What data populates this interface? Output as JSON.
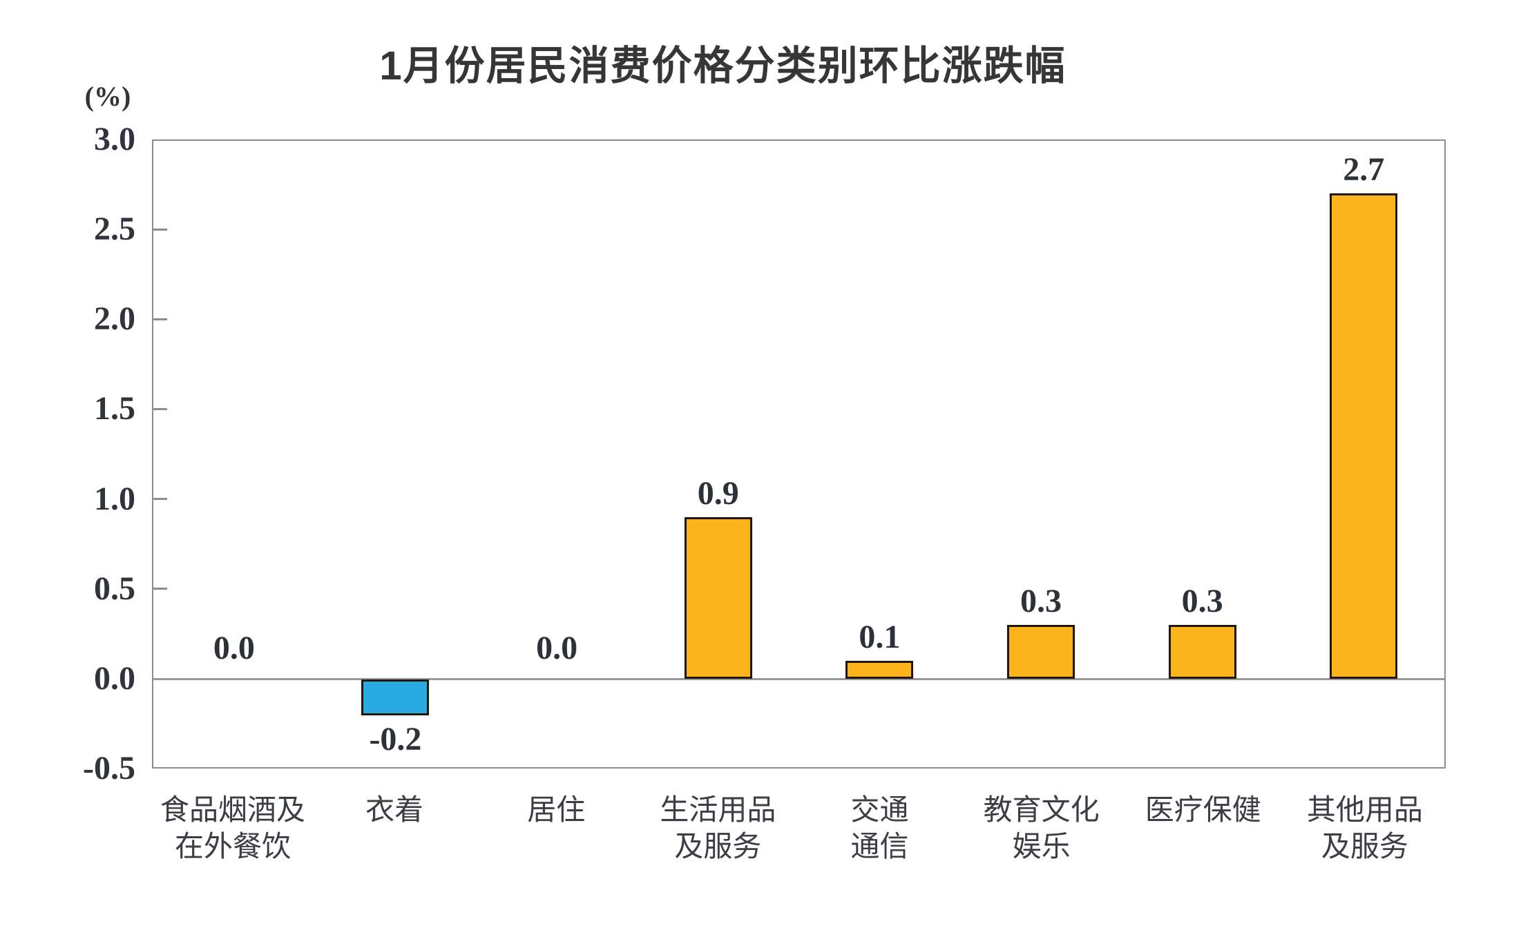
{
  "figure": {
    "title": "1月份居民消费价格分类别环比涨跌幅",
    "unit_label": "(%)"
  },
  "colors": {
    "positive_bar": "#FBB41B",
    "negative_bar": "#29ABE2",
    "bar_border": "#201708",
    "axis_border": "#8C8C8C",
    "zero_line": "#9A9A9A",
    "text": "#2C313A",
    "background": "#FFFFFF"
  },
  "chart_data": {
    "type": "bar",
    "title": "1月份居民消费价格分类别环比涨跌幅",
    "xlabel": "",
    "ylabel": "(%)",
    "ylim": [
      -0.5,
      3.0
    ],
    "yticks": [
      3.0,
      2.5,
      2.0,
      1.5,
      1.0,
      0.5,
      0.0,
      -0.5
    ],
    "ytick_labels": [
      "3.0",
      "2.5",
      "2.0",
      "1.5",
      "1.0",
      "0.5",
      "0.0",
      "-0.5"
    ],
    "grid": false,
    "legend": false,
    "categories": [
      "食品烟酒及在外餐饮",
      "衣着",
      "居住",
      "生活用品及服务",
      "交通通信",
      "教育文化娱乐",
      "医疗保健",
      "其他用品及服务"
    ],
    "category_lines": [
      [
        "食品烟酒及",
        "在外餐饮"
      ],
      [
        "衣着"
      ],
      [
        "居住"
      ],
      [
        "生活用品",
        "及服务"
      ],
      [
        "交通",
        "通信"
      ],
      [
        "教育文化",
        "娱乐"
      ],
      [
        "医疗保健"
      ],
      [
        "其他用品",
        "及服务"
      ]
    ],
    "values": [
      0.0,
      -0.2,
      0.0,
      0.9,
      0.1,
      0.3,
      0.3,
      2.7
    ],
    "value_labels": [
      "0.0",
      "-0.2",
      "0.0",
      "0.9",
      "0.1",
      "0.3",
      "0.3",
      "2.7"
    ]
  }
}
